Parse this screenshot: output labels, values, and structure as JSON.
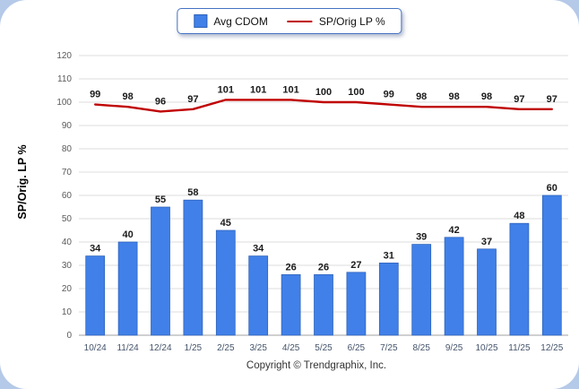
{
  "chart_data": {
    "type": "bar",
    "subtype": "bar+line combo",
    "categories": [
      "10/24",
      "11/24",
      "12/24",
      "1/25",
      "2/25",
      "3/25",
      "4/25",
      "5/25",
      "6/25",
      "7/25",
      "8/25",
      "9/25",
      "10/25",
      "11/25",
      "12/25"
    ],
    "series": [
      {
        "name": "Avg CDOM",
        "type": "bar",
        "color": "#4080e8",
        "values": [
          34,
          40,
          55,
          58,
          45,
          34,
          26,
          26,
          27,
          31,
          39,
          42,
          37,
          48,
          60
        ]
      },
      {
        "name": "SP/Orig LP %",
        "type": "line",
        "color": "#c00000",
        "values": [
          99,
          98,
          96,
          97,
          101,
          101,
          101,
          100,
          100,
          99,
          98,
          98,
          98,
          97,
          97
        ]
      }
    ],
    "title": "",
    "xlabel": "",
    "ylabel": "SP/Orig. LP %",
    "ylim": [
      0,
      120
    ],
    "ytick_step": 10,
    "grid": true,
    "legend_position": "top-center",
    "data_labels": true
  },
  "footer": {
    "copyright": "Copyright © Trendgraphix, Inc."
  },
  "colors": {
    "page_background": "#b5c9e8",
    "panel_background": "#ffffff",
    "gridline": "#dcdcdc",
    "axis_line": "#a0a0a0",
    "tick_text": "#595959",
    "x_tick_text": "#44546a",
    "value_label_text": "#1a1a1a",
    "legend_border": "#4472c4"
  }
}
